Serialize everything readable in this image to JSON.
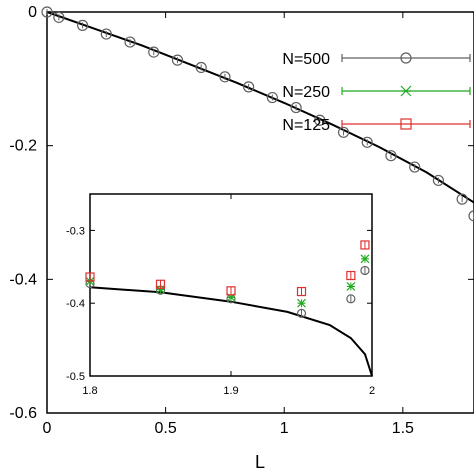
{
  "chart_data": [
    {
      "type": "line",
      "xlabel": "L",
      "ylabel": "",
      "xlim": [
        0,
        1.8
      ],
      "ylim": [
        -0.6,
        0
      ],
      "x_ticks": [
        0,
        0.5,
        1,
        1.5
      ],
      "y_ticks": [
        0,
        -0.2,
        -0.4,
        -0.6
      ],
      "x_tick_labels": [
        "0",
        "0.5",
        "1",
        "1.5"
      ],
      "y_tick_labels": [
        "0",
        "-0.2",
        "-0.4",
        "-0.6"
      ],
      "legend_position": "top-right",
      "series": [
        {
          "name": "N=500",
          "marker": "circle",
          "color": "#606060",
          "x": [
            0.0,
            0.05,
            0.15,
            0.25,
            0.35,
            0.45,
            0.55,
            0.65,
            0.75,
            0.85,
            0.95,
            1.05,
            1.15,
            1.25,
            1.35,
            1.45,
            1.55,
            1.65,
            1.75,
            1.8
          ],
          "y": [
            0.0,
            -0.008,
            -0.02,
            -0.033,
            -0.045,
            -0.06,
            -0.072,
            -0.083,
            -0.097,
            -0.112,
            -0.128,
            -0.143,
            -0.162,
            -0.18,
            -0.195,
            -0.215,
            -0.232,
            -0.252,
            -0.28,
            -0.305
          ]
        }
      ],
      "curve": {
        "x": [
          0,
          0.2,
          0.4,
          0.6,
          0.8,
          1.0,
          1.2,
          1.4,
          1.6,
          1.8
        ],
        "y": [
          0,
          -0.025,
          -0.05,
          -0.078,
          -0.106,
          -0.136,
          -0.168,
          -0.202,
          -0.24,
          -0.285
        ]
      }
    },
    {
      "type": "scatter",
      "xlim": [
        1.8,
        2.0
      ],
      "ylim": [
        -0.5,
        -0.25
      ],
      "x_ticks": [
        1.8,
        1.9,
        2.0
      ],
      "y_ticks": [
        -0.3,
        -0.4,
        -0.5
      ],
      "x_tick_labels": [
        "1.8",
        "1.9",
        "2"
      ],
      "y_tick_labels": [
        "-0.3",
        "-0.4",
        "-0.5"
      ],
      "series": [
        {
          "name": "N=500",
          "marker": "circle",
          "color": "#606060",
          "x": [
            1.8,
            1.85,
            1.9,
            1.95,
            1.985,
            1.995
          ],
          "y": [
            -0.373,
            -0.382,
            -0.394,
            -0.414,
            -0.394,
            -0.355
          ]
        },
        {
          "name": "N=250",
          "marker": "star",
          "color": "#22aa22",
          "x": [
            1.8,
            1.85,
            1.9,
            1.95,
            1.985,
            1.995
          ],
          "y": [
            -0.37,
            -0.381,
            -0.392,
            -0.4,
            -0.377,
            -0.339
          ]
        },
        {
          "name": "N=125",
          "marker": "square",
          "color": "#e03030",
          "x": [
            1.8,
            1.85,
            1.9,
            1.95,
            1.985,
            1.995
          ],
          "y": [
            -0.364,
            -0.374,
            -0.383,
            -0.384,
            -0.362,
            -0.32
          ]
        }
      ],
      "curve": {
        "x": [
          1.8,
          1.85,
          1.9,
          1.94,
          1.97,
          1.985,
          1.995,
          2.0
        ],
        "y": [
          -0.378,
          -0.385,
          -0.398,
          -0.412,
          -0.43,
          -0.448,
          -0.47,
          -0.5
        ]
      }
    }
  ]
}
